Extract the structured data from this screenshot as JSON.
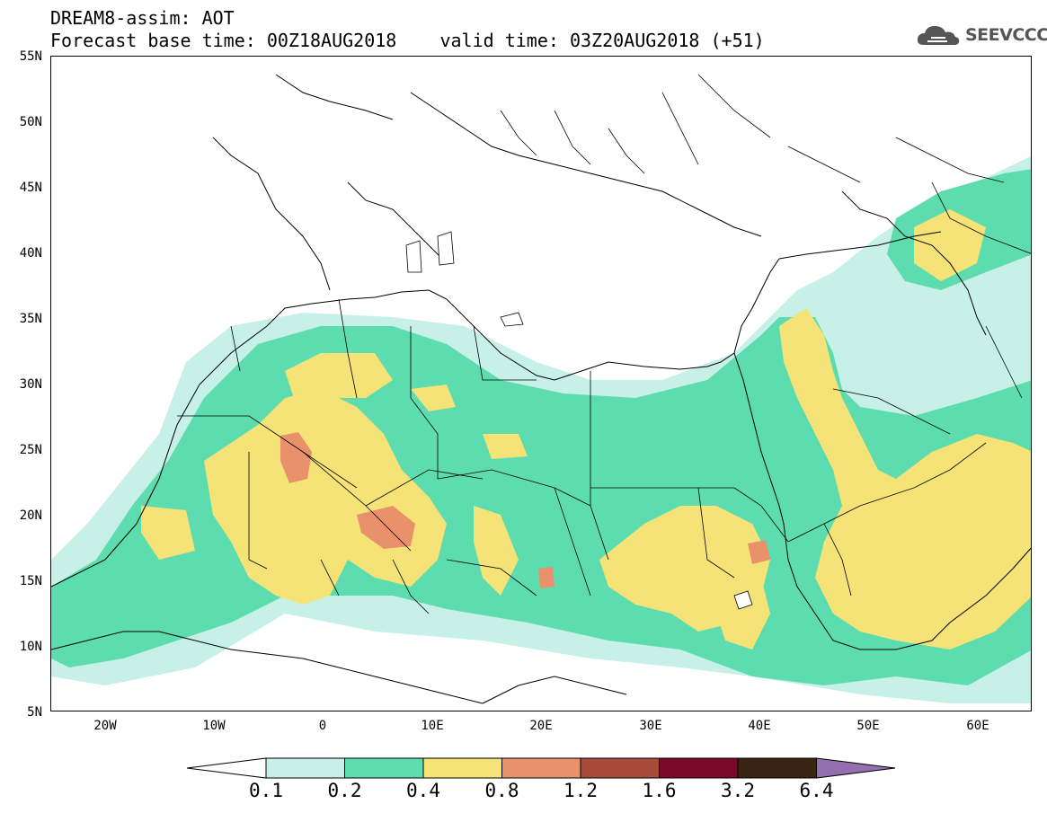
{
  "header": {
    "line1": "DREAM8-assim: AOT",
    "line2": "Forecast base time: 00Z18AUG2018    valid time: 03Z20AUG2018 (+51)"
  },
  "logo": {
    "text": "SEEVCCC",
    "icon": "cloud-icon"
  },
  "map": {
    "lat_labels": [
      "55N",
      "50N",
      "45N",
      "40N",
      "35N",
      "30N",
      "25N",
      "20N",
      "15N",
      "10N",
      "5N"
    ],
    "lon_labels": [
      "20W",
      "10W",
      "0",
      "10E",
      "20E",
      "30E",
      "40E",
      "50E",
      "60E"
    ]
  },
  "colorbar": {
    "labels": [
      "0.1",
      "0.2",
      "0.4",
      "0.8",
      "1.2",
      "1.6",
      "3.2",
      "6.4"
    ],
    "colors": [
      "#ffffff",
      "#c6f0e8",
      "#5ddcb0",
      "#f5e377",
      "#e8916a",
      "#a84b3a",
      "#7b0a2a",
      "#3b2414",
      "#9470b0"
    ]
  },
  "legend_colors": {
    "level_0_1": "#c6f0e8",
    "level_0_2": "#5ddcb0",
    "level_0_4": "#f5e377",
    "level_0_8": "#e8916a",
    "level_1_2": "#a84b3a"
  }
}
